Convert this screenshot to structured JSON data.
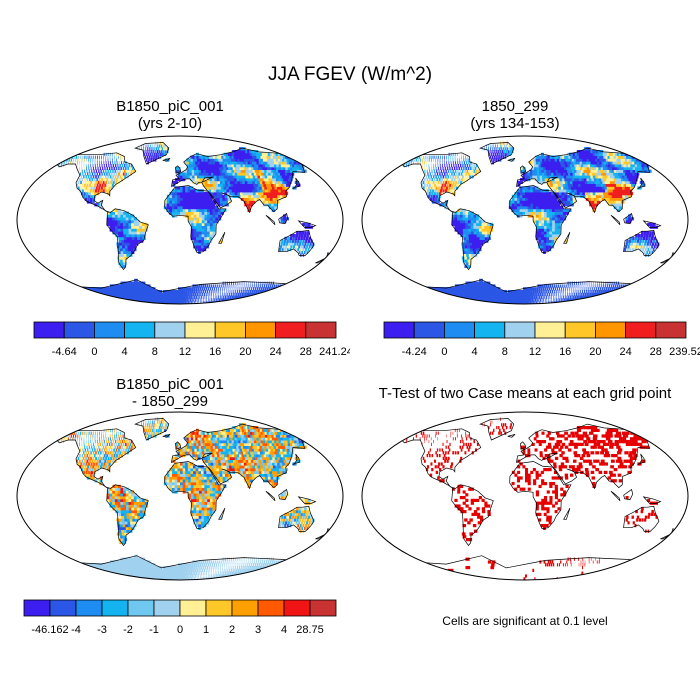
{
  "title": "JJA FGEV (W/m^2)",
  "panels": [
    {
      "id": "case1",
      "title_lines": [
        "B1850_piC_001",
        "(yrs 2-10)"
      ],
      "kind": "mean",
      "colorbar": {
        "labels": [
          "-4.64",
          "0",
          "4",
          "8",
          "12",
          "16",
          "20",
          "24",
          "28",
          "241.24"
        ]
      }
    },
    {
      "id": "case2",
      "title_lines": [
        "1850_299",
        "(yrs 134-153)"
      ],
      "kind": "mean",
      "colorbar": {
        "labels": [
          "-4.24",
          "0",
          "4",
          "8",
          "12",
          "16",
          "20",
          "24",
          "28",
          "239.52"
        ]
      }
    },
    {
      "id": "diff",
      "title_lines": [
        "B1850_piC_001",
        "- 1850_299"
      ],
      "kind": "diff",
      "colorbar": {
        "labels": [
          "-46.162",
          "-4",
          "-3",
          "-2",
          "-1",
          "0",
          "1",
          "2",
          "3",
          "4",
          "28.75"
        ]
      }
    },
    {
      "id": "ttest",
      "title_lines": [
        "T-Test of two Case means at each grid point"
      ],
      "kind": "sig",
      "colorbar": null
    }
  ],
  "significance_note": "Cells are significant at 0.1 level",
  "colors": {
    "mean_scale": [
      "#3c1ef0",
      "#2b56e6",
      "#1e8cf0",
      "#14b4f0",
      "#a0d2f0",
      "#fff096",
      "#ffc828",
      "#ff9600",
      "#f01e1e",
      "#c83232"
    ],
    "diff_scale": [
      "#3c1ef0",
      "#2b56e6",
      "#1e8cf0",
      "#14b4f0",
      "#6ec8f0",
      "#a0d2f0",
      "#fff096",
      "#ffc828",
      "#ffa000",
      "#ff5a00",
      "#f01414",
      "#c83232"
    ],
    "significance": "#e60000"
  },
  "chart_data": [
    {
      "type": "heatmap",
      "title": "B1850_piC_001 (yrs 2-10)",
      "projection": "robinson",
      "variable": "JJA FGEV",
      "units": "W/m^2",
      "colorbar_levels": [
        -4.64,
        0,
        4,
        8,
        12,
        16,
        20,
        24,
        28,
        241.24
      ]
    },
    {
      "type": "heatmap",
      "title": "1850_299 (yrs 134-153)",
      "projection": "robinson",
      "variable": "JJA FGEV",
      "units": "W/m^2",
      "colorbar_levels": [
        -4.24,
        0,
        4,
        8,
        12,
        16,
        20,
        24,
        28,
        239.52
      ]
    },
    {
      "type": "heatmap",
      "title": "B1850_piC_001 - 1850_299",
      "projection": "robinson",
      "variable": "JJA FGEV difference",
      "units": "W/m^2",
      "colorbar_levels": [
        -46.162,
        -4,
        -3,
        -2,
        -1,
        0,
        1,
        2,
        3,
        4,
        28.75
      ]
    },
    {
      "type": "heatmap",
      "title": "T-Test of two Case means at each grid point",
      "projection": "robinson",
      "significance_level": 0.1,
      "note": "Cells are significant at 0.1 level"
    }
  ]
}
